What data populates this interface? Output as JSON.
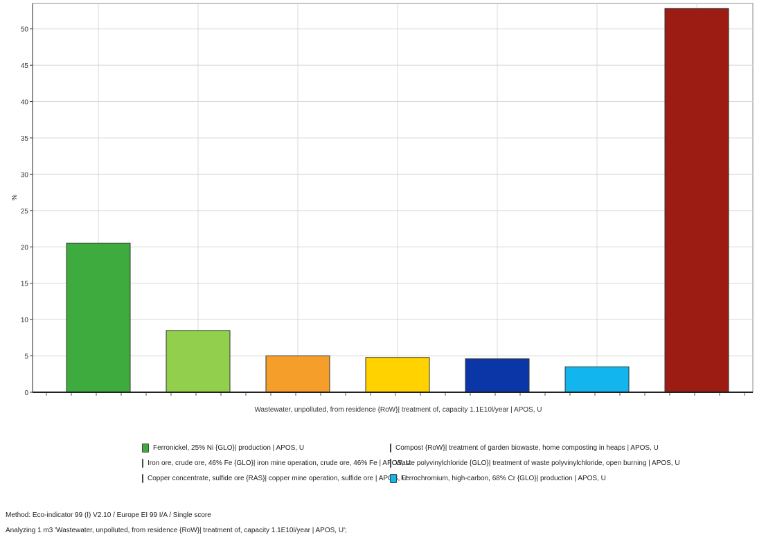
{
  "chart_data": {
    "type": "bar",
    "title": "",
    "xlabel": "Wastewater, unpolluted, from residence {RoW}| treatment of, capacity 1.1E10l/year | APOS, U",
    "ylabel": "%",
    "ylim": [
      0,
      53.5
    ],
    "yticks": [
      0,
      5,
      10,
      15,
      20,
      25,
      30,
      35,
      40,
      45,
      50
    ],
    "grid": true,
    "legend_position": "bottom",
    "series": [
      {
        "name": "Ferronickel, 25% Ni {GLO}| production | APOS, U",
        "value": 20.5,
        "color": "#3dab3d"
      },
      {
        "name": "Compost {RoW}| treatment of garden biowaste, home composting in heaps | APOS, U",
        "value": 8.5,
        "color": "#92cf4c"
      },
      {
        "name": "Iron ore, crude ore, 46% Fe {GLO}| iron mine operation, crude ore, 46% Fe | APOS, U",
        "value": 5.0,
        "color": "#f59e2a"
      },
      {
        "name": "Waste polyvinylchloride {GLO}| treatment of waste polyvinylchloride, open burning | APOS, U",
        "value": 4.8,
        "color": "#ffd200"
      },
      {
        "name": "Copper concentrate, sulfide ore {RAS}| copper mine operation, sulfide ore | APOS, U",
        "value": 4.6,
        "color": "#0a36a8"
      },
      {
        "name": "Ferrochromium, high-carbon, 68% Cr {GLO}| production | APOS, U",
        "value": 3.5,
        "color": "#13b5ee"
      },
      {
        "value": 52.8,
        "color": "#9c1b12"
      }
    ]
  },
  "footer": {
    "method": "Method: Eco-indicator 99 (I) V2.10 / Europe EI 99 I/A / Single score",
    "analyzing": "Analyzing 1 m3 'Wastewater, unpolluted, from residence {RoW}| treatment of, capacity 1.1E10l/year | APOS, U';"
  }
}
